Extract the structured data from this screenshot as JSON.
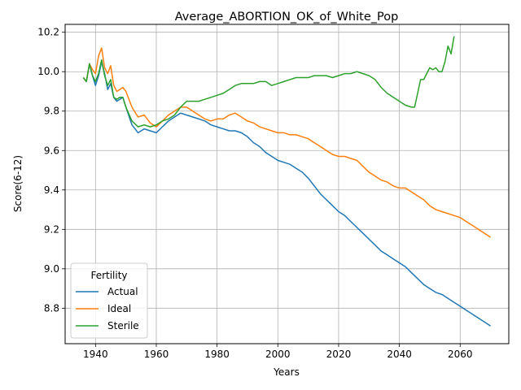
{
  "chart_data": {
    "type": "line",
    "title": "Average_ABORTION_OK_of_White_Pop",
    "xlabel": "Years",
    "ylabel": "Score(6-12)",
    "xlim": [
      1930,
      2076
    ],
    "ylim": [
      8.62,
      10.24
    ],
    "xticks": [
      1940,
      1960,
      1980,
      2000,
      2020,
      2040,
      2060
    ],
    "yticks": [
      8.8,
      9.0,
      9.2,
      9.4,
      9.6,
      9.8,
      10.0,
      10.2
    ],
    "ytick_labels": [
      "8.8",
      "9.0",
      "9.2",
      "9.4",
      "9.6",
      "9.8",
      "10.0",
      "10.2"
    ],
    "grid": true,
    "legend": {
      "title": "Fertility",
      "placement": "lower-left"
    },
    "series": [
      {
        "name": "Actual",
        "color": "#1f77b4",
        "x": [
          1936,
          1937,
          1938,
          1939,
          1940,
          1941,
          1942,
          1943,
          1944,
          1945,
          1946,
          1947,
          1948,
          1949,
          1950,
          1952,
          1954,
          1956,
          1958,
          1960,
          1962,
          1964,
          1966,
          1968,
          1970,
          1972,
          1974,
          1976,
          1978,
          1980,
          1982,
          1984,
          1986,
          1988,
          1990,
          1992,
          1994,
          1996,
          1998,
          2000,
          2002,
          2004,
          2006,
          2008,
          2010,
          2012,
          2014,
          2016,
          2018,
          2020,
          2022,
          2024,
          2026,
          2028,
          2030,
          2032,
          2034,
          2036,
          2038,
          2040,
          2042,
          2044,
          2046,
          2048,
          2050,
          2052,
          2054,
          2056,
          2058,
          2060,
          2062,
          2064,
          2066,
          2068,
          2070
        ],
        "y": [
          9.97,
          9.95,
          10.04,
          9.98,
          9.93,
          9.98,
          10.05,
          9.99,
          9.91,
          9.94,
          9.87,
          9.85,
          9.86,
          9.87,
          9.82,
          9.73,
          9.69,
          9.71,
          9.7,
          9.69,
          9.72,
          9.75,
          9.77,
          9.79,
          9.78,
          9.77,
          9.76,
          9.75,
          9.73,
          9.72,
          9.71,
          9.7,
          9.7,
          9.69,
          9.67,
          9.64,
          9.62,
          9.59,
          9.57,
          9.55,
          9.54,
          9.53,
          9.51,
          9.49,
          9.46,
          9.42,
          9.38,
          9.35,
          9.32,
          9.29,
          9.27,
          9.24,
          9.21,
          9.18,
          9.15,
          9.12,
          9.09,
          9.07,
          9.05,
          9.03,
          9.01,
          8.98,
          8.95,
          8.92,
          8.9,
          8.88,
          8.87,
          8.85,
          8.83,
          8.81,
          8.79,
          8.77,
          8.75,
          8.73,
          8.71
        ]
      },
      {
        "name": "Ideal",
        "color": "#ff7f0e",
        "x": [
          1936,
          1937,
          1938,
          1939,
          1940,
          1941,
          1942,
          1943,
          1944,
          1945,
          1946,
          1947,
          1948,
          1949,
          1950,
          1952,
          1954,
          1956,
          1958,
          1960,
          1962,
          1964,
          1966,
          1968,
          1970,
          1972,
          1974,
          1976,
          1978,
          1980,
          1982,
          1984,
          1986,
          1988,
          1990,
          1992,
          1994,
          1996,
          1998,
          2000,
          2002,
          2004,
          2006,
          2008,
          2010,
          2012,
          2014,
          2016,
          2018,
          2020,
          2022,
          2024,
          2026,
          2028,
          2030,
          2032,
          2034,
          2036,
          2038,
          2040,
          2042,
          2044,
          2046,
          2048,
          2050,
          2052,
          2054,
          2056,
          2058,
          2060,
          2062,
          2064,
          2066,
          2068,
          2070
        ],
        "y": [
          9.97,
          9.95,
          10.04,
          10.01,
          9.99,
          10.08,
          10.12,
          10.02,
          9.99,
          10.03,
          9.93,
          9.9,
          9.91,
          9.92,
          9.9,
          9.82,
          9.77,
          9.78,
          9.74,
          9.72,
          9.75,
          9.78,
          9.8,
          9.82,
          9.82,
          9.8,
          9.78,
          9.76,
          9.75,
          9.76,
          9.76,
          9.78,
          9.79,
          9.77,
          9.75,
          9.74,
          9.72,
          9.71,
          9.7,
          9.69,
          9.69,
          9.68,
          9.68,
          9.67,
          9.66,
          9.64,
          9.62,
          9.6,
          9.58,
          9.57,
          9.57,
          9.56,
          9.55,
          9.52,
          9.49,
          9.47,
          9.45,
          9.44,
          9.42,
          9.41,
          9.41,
          9.39,
          9.37,
          9.35,
          9.32,
          9.3,
          9.29,
          9.28,
          9.27,
          9.26,
          9.24,
          9.22,
          9.2,
          9.18,
          9.16
        ]
      },
      {
        "name": "Sterile",
        "color": "#2ca02c",
        "x": [
          1936,
          1937,
          1938,
          1939,
          1940,
          1941,
          1942,
          1943,
          1944,
          1945,
          1946,
          1947,
          1948,
          1949,
          1950,
          1952,
          1954,
          1956,
          1958,
          1960,
          1962,
          1964,
          1966,
          1968,
          1970,
          1972,
          1974,
          1976,
          1978,
          1980,
          1982,
          1984,
          1986,
          1988,
          1990,
          1992,
          1994,
          1996,
          1998,
          2000,
          2002,
          2004,
          2006,
          2008,
          2010,
          2012,
          2014,
          2016,
          2018,
          2020,
          2022,
          2024,
          2026,
          2028,
          2030,
          2032,
          2034,
          2036,
          2038,
          2040,
          2042,
          2044,
          2045,
          2046,
          2047,
          2048,
          2049,
          2050,
          2051,
          2052,
          2053,
          2054,
          2055,
          2056,
          2057,
          2058
        ],
        "y": [
          9.97,
          9.95,
          10.04,
          9.98,
          9.95,
          9.99,
          10.06,
          9.98,
          9.93,
          9.96,
          9.87,
          9.86,
          9.87,
          9.87,
          9.82,
          9.75,
          9.72,
          9.73,
          9.72,
          9.73,
          9.75,
          9.76,
          9.78,
          9.82,
          9.85,
          9.85,
          9.85,
          9.86,
          9.87,
          9.88,
          9.89,
          9.91,
          9.93,
          9.94,
          9.94,
          9.94,
          9.95,
          9.95,
          9.93,
          9.94,
          9.95,
          9.96,
          9.97,
          9.97,
          9.97,
          9.98,
          9.98,
          9.98,
          9.97,
          9.98,
          9.99,
          9.99,
          10.0,
          9.99,
          9.98,
          9.96,
          9.92,
          9.89,
          9.87,
          9.85,
          9.83,
          9.82,
          9.82,
          9.89,
          9.96,
          9.96,
          9.99,
          10.02,
          10.01,
          10.02,
          10.0,
          10.0,
          10.05,
          10.13,
          10.09,
          10.18
        ]
      }
    ]
  }
}
